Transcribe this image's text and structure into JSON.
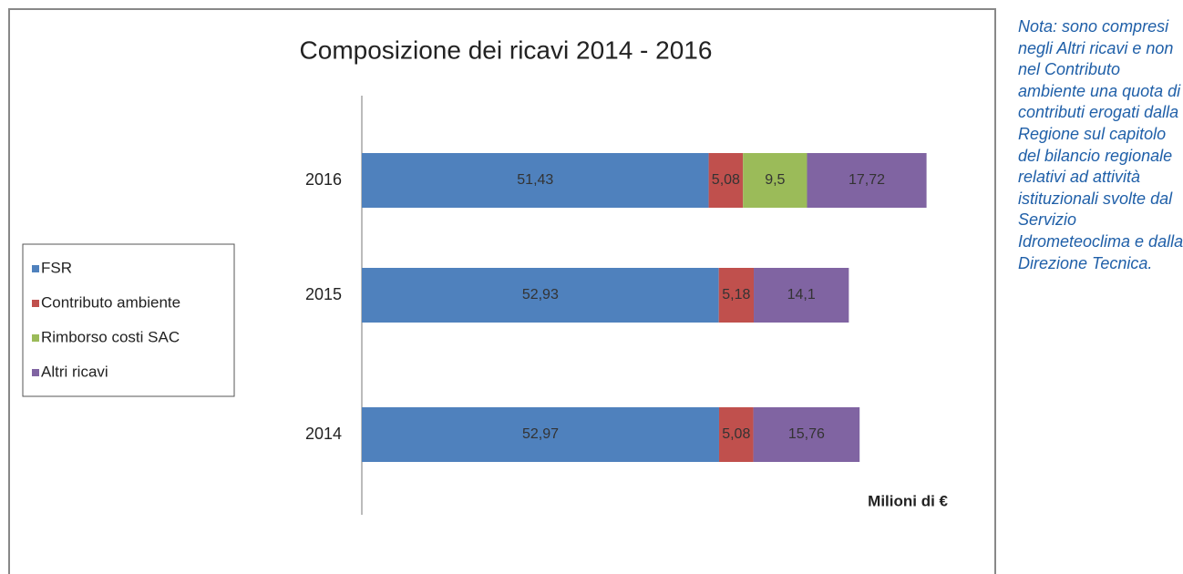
{
  "chart_data": {
    "type": "stacked-bar-horizontal",
    "title": "Composizione dei ricavi 2014 - 2016",
    "x_label": "Milioni di €",
    "categories": [
      "2016",
      "2015",
      "2014"
    ],
    "xlim": [
      0,
      90
    ],
    "legend": "left",
    "series": [
      {
        "name": "FSR",
        "color": "#4f81bd",
        "values": [
          51.43,
          52.93,
          52.97
        ],
        "value_labels": [
          "51,43",
          "52,93",
          "52,97"
        ]
      },
      {
        "name": "Contributo ambiente",
        "color": "#c0504d",
        "values": [
          5.08,
          5.18,
          5.08
        ],
        "value_labels": [
          "5,08",
          "5,18",
          "5,08"
        ]
      },
      {
        "name": "Rimborso costi SAC",
        "color": "#9bbb59",
        "values": [
          9.5,
          null,
          null
        ],
        "value_labels": [
          "9,5",
          null,
          null
        ]
      },
      {
        "name": "Altri ricavi",
        "color": "#8064a2",
        "values": [
          17.72,
          14.1,
          15.76
        ],
        "value_labels": [
          "17,72",
          "14,1",
          "15,76"
        ]
      }
    ]
  },
  "note": "Nota: sono compresi negli Altri ricavi e non nel Contributo ambiente una quota di contributi erogati dalla Regione sul capitolo del bilancio regionale relativi ad attività istituzionali svolte dal Servizio Idrometeoclima e dalla Direzione Tecnica."
}
